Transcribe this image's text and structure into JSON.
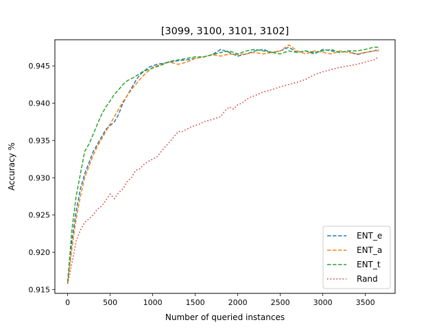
{
  "chart_data": {
    "type": "line",
    "title": "[3099, 3100, 3101, 3102]",
    "xlabel": "Number of queried instances",
    "ylabel": "Accuracy %",
    "xlim": [
      -150,
      3850
    ],
    "ylim": [
      0.9145,
      0.9485
    ],
    "xticks": [
      0,
      500,
      1000,
      1500,
      2000,
      2500,
      3000,
      3500
    ],
    "yticks": [
      0.915,
      0.92,
      0.925,
      0.93,
      0.935,
      0.94,
      0.945
    ],
    "ytick_labels": [
      "0.915",
      "0.920",
      "0.925",
      "0.930",
      "0.935",
      "0.940",
      "0.945"
    ],
    "grid": false,
    "legend_position": "lower-right",
    "series": [
      {
        "name": "ENT_e",
        "color": "#1f77b4",
        "style": "dashed",
        "x": [
          0,
          50,
          100,
          150,
          200,
          250,
          300,
          350,
          400,
          450,
          500,
          550,
          600,
          650,
          700,
          750,
          800,
          850,
          900,
          950,
          1000,
          1050,
          1100,
          1200,
          1300,
          1400,
          1500,
          1600,
          1700,
          1800,
          1900,
          2000,
          2100,
          2200,
          2300,
          2400,
          2500,
          2600,
          2700,
          2800,
          2900,
          3000,
          3100,
          3200,
          3300,
          3400,
          3500,
          3600,
          3660
        ],
        "y": [
          0.916,
          0.9215,
          0.9255,
          0.9285,
          0.9305,
          0.932,
          0.9335,
          0.9345,
          0.9355,
          0.9365,
          0.937,
          0.9375,
          0.9385,
          0.94,
          0.941,
          0.942,
          0.943,
          0.9438,
          0.9443,
          0.9448,
          0.945,
          0.9452,
          0.9453,
          0.9455,
          0.9457,
          0.9458,
          0.946,
          0.9462,
          0.9465,
          0.9472,
          0.9468,
          0.9463,
          0.9466,
          0.947,
          0.9472,
          0.9468,
          0.947,
          0.9475,
          0.9468,
          0.947,
          0.9466,
          0.9472,
          0.947,
          0.9468,
          0.947,
          0.9465,
          0.9468,
          0.947,
          0.9472
        ]
      },
      {
        "name": "ENT_a",
        "color": "#ff7f0e",
        "style": "dashed",
        "x": [
          0,
          50,
          100,
          150,
          200,
          250,
          300,
          350,
          400,
          450,
          500,
          550,
          600,
          650,
          700,
          750,
          800,
          850,
          900,
          950,
          1000,
          1050,
          1100,
          1200,
          1300,
          1400,
          1500,
          1600,
          1700,
          1800,
          1900,
          2000,
          2100,
          2200,
          2300,
          2400,
          2500,
          2600,
          2700,
          2800,
          2900,
          3000,
          3100,
          3200,
          3300,
          3400,
          3500,
          3600,
          3660
        ],
        "y": [
          0.9158,
          0.9205,
          0.9245,
          0.9275,
          0.93,
          0.9315,
          0.933,
          0.9342,
          0.9352,
          0.9362,
          0.9372,
          0.9382,
          0.9392,
          0.9402,
          0.941,
          0.9418,
          0.9425,
          0.9432,
          0.9438,
          0.9443,
          0.9448,
          0.945,
          0.9452,
          0.9455,
          0.9452,
          0.9455,
          0.946,
          0.9462,
          0.9465,
          0.9463,
          0.9466,
          0.9465,
          0.9466,
          0.9468,
          0.9466,
          0.9468,
          0.947,
          0.9478,
          0.947,
          0.9466,
          0.947,
          0.9468,
          0.9466,
          0.947,
          0.9468,
          0.9466,
          0.9468,
          0.947,
          0.947
        ]
      },
      {
        "name": "ENT_t",
        "color": "#2ca02c",
        "style": "dashed",
        "x": [
          0,
          50,
          100,
          150,
          200,
          250,
          300,
          350,
          400,
          450,
          500,
          550,
          600,
          650,
          700,
          750,
          800,
          850,
          900,
          950,
          1000,
          1050,
          1100,
          1200,
          1300,
          1400,
          1500,
          1600,
          1700,
          1800,
          1900,
          2000,
          2100,
          2200,
          2300,
          2400,
          2500,
          2600,
          2700,
          2800,
          2900,
          3000,
          3100,
          3200,
          3300,
          3400,
          3500,
          3600,
          3660
        ],
        "y": [
          0.916,
          0.923,
          0.9275,
          0.9305,
          0.9335,
          0.9345,
          0.9358,
          0.9372,
          0.9385,
          0.9395,
          0.9403,
          0.9412,
          0.9418,
          0.9425,
          0.943,
          0.9433,
          0.9436,
          0.944,
          0.9443,
          0.9445,
          0.9447,
          0.9449,
          0.9451,
          0.9456,
          0.9458,
          0.946,
          0.9462,
          0.9462,
          0.9465,
          0.9468,
          0.947,
          0.9466,
          0.947,
          0.9472,
          0.947,
          0.9468,
          0.9466,
          0.947,
          0.9468,
          0.947,
          0.9468,
          0.947,
          0.9472,
          0.9468,
          0.947,
          0.947,
          0.9472,
          0.9475,
          0.9475
        ]
      },
      {
        "name": "Rand",
        "color": "#d62728",
        "style": "dotted",
        "x": [
          0,
          50,
          100,
          150,
          200,
          250,
          300,
          350,
          400,
          450,
          500,
          550,
          600,
          650,
          700,
          750,
          800,
          850,
          900,
          950,
          1000,
          1050,
          1100,
          1150,
          1200,
          1250,
          1300,
          1350,
          1400,
          1450,
          1500,
          1550,
          1600,
          1700,
          1800,
          1850,
          1900,
          1950,
          2000,
          2050,
          2100,
          2150,
          2200,
          2300,
          2400,
          2500,
          2600,
          2700,
          2800,
          2900,
          3000,
          3100,
          3200,
          3300,
          3400,
          3500,
          3600,
          3660
        ],
        "y": [
          0.9158,
          0.9185,
          0.9215,
          0.923,
          0.924,
          0.9245,
          0.925,
          0.9258,
          0.9262,
          0.927,
          0.9278,
          0.9272,
          0.928,
          0.9285,
          0.9295,
          0.93,
          0.931,
          0.9312,
          0.9318,
          0.9322,
          0.9325,
          0.9328,
          0.9335,
          0.9342,
          0.9348,
          0.9355,
          0.9362,
          0.9362,
          0.9365,
          0.9368,
          0.937,
          0.9372,
          0.9375,
          0.9378,
          0.9382,
          0.939,
          0.9395,
          0.9392,
          0.9398,
          0.94,
          0.9405,
          0.9408,
          0.941,
          0.9415,
          0.9418,
          0.9422,
          0.9425,
          0.9428,
          0.9432,
          0.9438,
          0.9442,
          0.9445,
          0.9448,
          0.945,
          0.9452,
          0.9455,
          0.9458,
          0.9462
        ]
      }
    ]
  }
}
